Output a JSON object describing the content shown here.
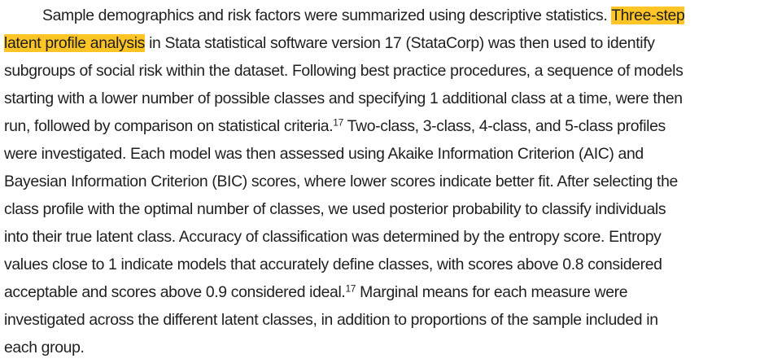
{
  "paragraph": {
    "line1_before": "Sample demographics and risk factors were summarized using descriptive statistics.",
    "highlight_part1": "Three-step",
    "highlight_part2": "latent profile analysis",
    "line2_after": "in Stata statistical software version 17 (StataCorp) was then used to identify",
    "line3": "subgroups of social risk within the dataset. Following best practice procedures, a sequence of models",
    "line4": "starting with a lower number of possible classes and specifying 1 additional class at a time, were then",
    "line5_before": "run, followed by comparison on statistical criteria.",
    "citation_1": "17",
    "line5_after": "Two-class, 3-class, 4-class, and 5-class profiles",
    "line6": "were investigated. Each model was then assessed using Akaike Information Criterion (AIC) and",
    "line7": "Bayesian Information Criterion (BIC) scores, where lower scores indicate better fit. After selecting the",
    "line8": "class profile with the optimal number of classes, we used posterior probability to classify individuals",
    "line9": "into their true latent class. Accuracy of classification was determined by the entropy score. Entropy",
    "line10": "values close to 1 indicate models that accurately define classes, with scores above 0.8 considered",
    "line11_before": "acceptable and scores above 0.9 considered ideal.",
    "citation_2": "17",
    "line11_after": "Marginal means for each measure were",
    "line12": "investigated across the different latent classes, in addition to proportions of the sample included in",
    "line13": "each group.",
    "highlight_color": "#ffc426"
  }
}
